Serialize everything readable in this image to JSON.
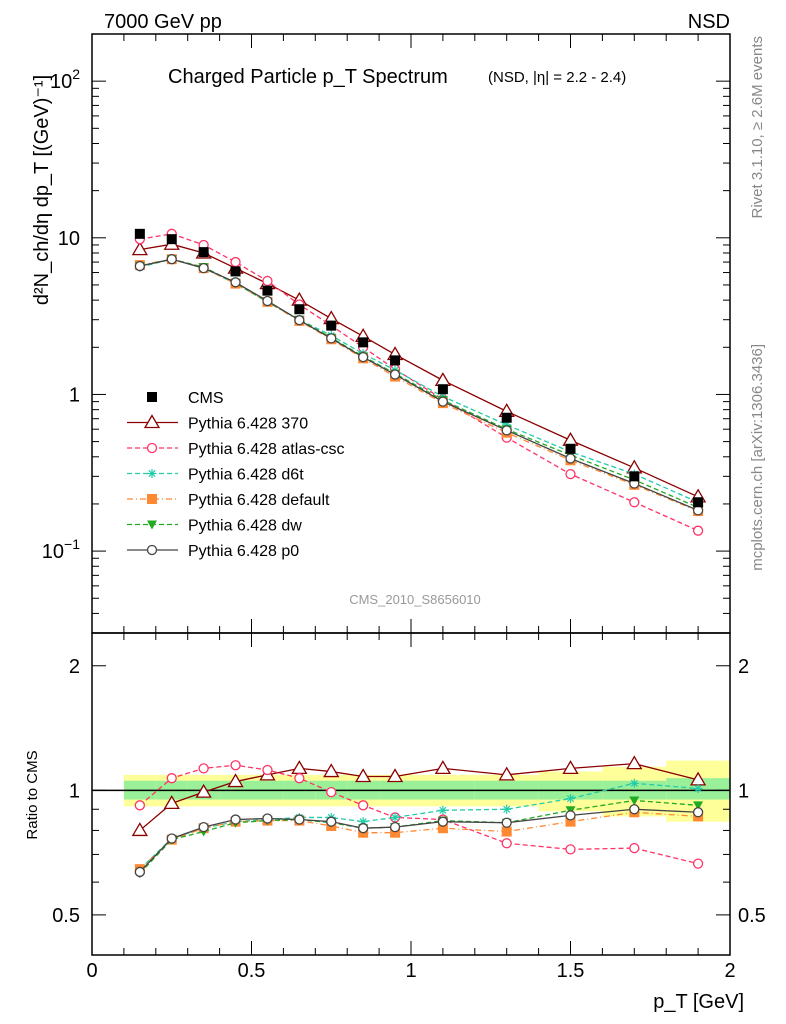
{
  "header": {
    "left": "7000 GeV pp",
    "right": "NSD"
  },
  "side_text": {
    "rivet": "Rivet 3.1.10, ≥ 2.6M events",
    "mcplots": "mcplots.cern.ch [arXiv:1306.3436]"
  },
  "chart_data": [
    {
      "type": "line",
      "panel": "main",
      "title": "Charged Particle p_T Spectrum",
      "subtitle": "(NSD, |η| = 2.2 - 2.4)",
      "analysis_label": "CMS_2010_S8656010",
      "xlabel": "p_T [GeV]",
      "ylabel": "d²N_ch/dη dp_T [(GeV)⁻¹]",
      "yscale": "log",
      "xlim": [
        0,
        2
      ],
      "ylim": [
        0.03,
        200
      ],
      "legend_position": "lower-left",
      "x": [
        0.15,
        0.25,
        0.35,
        0.45,
        0.55,
        0.65,
        0.75,
        0.85,
        0.95,
        1.1,
        1.3,
        1.5,
        1.7,
        1.9
      ],
      "series": [
        {
          "name": "CMS",
          "color": "#000000",
          "marker": "filled-square",
          "line": "none",
          "values": [
            10.6,
            9.8,
            8.1,
            6.1,
            4.6,
            3.5,
            2.75,
            2.15,
            1.65,
            1.08,
            0.71,
            0.45,
            0.3,
            0.205
          ]
        },
        {
          "name": "Pythia 6.428 370",
          "color": "#8b0000",
          "marker": "open-triangle",
          "line": "solid",
          "values": [
            8.4,
            9.1,
            8.0,
            6.4,
            5.1,
            4.0,
            3.05,
            2.35,
            1.8,
            1.23,
            0.78,
            0.51,
            0.34,
            0.222
          ]
        },
        {
          "name": "Pythia 6.428 atlas-csc",
          "color": "#ff3366",
          "marker": "open-circle",
          "line": "dashed",
          "values": [
            9.8,
            10.6,
            9.0,
            7.0,
            5.3,
            3.75,
            2.75,
            2.0,
            1.45,
            0.93,
            0.53,
            0.31,
            0.205,
            0.135
          ]
        },
        {
          "name": "Pythia 6.428 d6t",
          "color": "#22ccaa",
          "marker": "star",
          "line": "dashed",
          "values": [
            6.5,
            7.3,
            6.4,
            5.1,
            3.9,
            3.0,
            2.38,
            1.82,
            1.43,
            0.97,
            0.64,
            0.43,
            0.31,
            0.205
          ]
        },
        {
          "name": "Pythia 6.428 default",
          "color": "#ff8833",
          "marker": "filled-square",
          "line": "dashdot",
          "values": [
            6.7,
            7.3,
            6.4,
            5.1,
            3.9,
            2.95,
            2.25,
            1.7,
            1.3,
            0.88,
            0.57,
            0.38,
            0.265,
            0.18
          ]
        },
        {
          "name": "Pythia 6.428 dw",
          "color": "#22aa22",
          "marker": "filled-triangle-down",
          "line": "dashed",
          "values": [
            6.6,
            7.3,
            6.5,
            5.15,
            3.9,
            3.0,
            2.3,
            1.75,
            1.36,
            0.92,
            0.6,
            0.41,
            0.285,
            0.19
          ]
        },
        {
          "name": "Pythia 6.428 p0",
          "color": "#444444",
          "marker": "open-circle",
          "line": "solid",
          "values": [
            6.6,
            7.3,
            6.4,
            5.2,
            3.95,
            2.98,
            2.28,
            1.73,
            1.34,
            0.9,
            0.59,
            0.39,
            0.27,
            0.182
          ]
        }
      ]
    },
    {
      "type": "line",
      "panel": "ratio",
      "xlabel": "p_T [GeV]",
      "ylabel": "Ratio to CMS",
      "yscale": "log",
      "xlim": [
        0,
        2
      ],
      "ylim": [
        0.4,
        2.4
      ],
      "x": [
        0.15,
        0.25,
        0.35,
        0.45,
        0.55,
        0.65,
        0.75,
        0.85,
        0.95,
        1.1,
        1.3,
        1.5,
        1.7,
        1.9
      ],
      "reference_line": 1,
      "uncertainty_bands": {
        "bin_edges": [
          0.1,
          0.2,
          0.3,
          0.4,
          0.5,
          0.6,
          0.7,
          0.8,
          0.9,
          1.0,
          1.2,
          1.4,
          1.6,
          1.8,
          2.0
        ],
        "inner_lo": [
          0.95,
          0.95,
          0.95,
          0.95,
          0.95,
          0.95,
          0.95,
          0.95,
          0.95,
          0.95,
          0.95,
          0.95,
          0.95,
          0.95
        ],
        "inner_hi": [
          1.055,
          1.055,
          1.055,
          1.055,
          1.055,
          1.055,
          1.055,
          1.055,
          1.055,
          1.055,
          1.055,
          1.055,
          1.055,
          1.07
        ],
        "outer_lo": [
          0.915,
          0.915,
          0.915,
          0.915,
          0.915,
          0.915,
          0.915,
          0.915,
          0.915,
          0.915,
          0.915,
          0.89,
          0.865,
          0.84
        ],
        "outer_hi": [
          1.09,
          1.09,
          1.09,
          1.09,
          1.09,
          1.09,
          1.09,
          1.09,
          1.09,
          1.09,
          1.09,
          1.11,
          1.14,
          1.18
        ],
        "inner_color": "#99f099",
        "outer_color": "#ffff99"
      },
      "series": [
        {
          "name": "Pythia 6.428 370",
          "color": "#8b0000",
          "marker": "open-triangle",
          "line": "solid",
          "values": [
            0.8,
            0.93,
            0.99,
            1.05,
            1.09,
            1.13,
            1.11,
            1.08,
            1.08,
            1.13,
            1.09,
            1.13,
            1.16,
            1.06
          ]
        },
        {
          "name": "Pythia 6.428 atlas-csc",
          "color": "#ff3366",
          "marker": "open-circle",
          "line": "dashed",
          "values": [
            0.92,
            1.07,
            1.13,
            1.15,
            1.12,
            1.07,
            0.99,
            0.92,
            0.86,
            0.85,
            0.745,
            0.72,
            0.725,
            0.665
          ]
        },
        {
          "name": "Pythia 6.428 d6t",
          "color": "#22ccaa",
          "marker": "star",
          "line": "dashed",
          "values": [
            0.645,
            0.765,
            0.81,
            0.84,
            0.85,
            0.86,
            0.86,
            0.84,
            0.86,
            0.895,
            0.9,
            0.955,
            1.04,
            1.01
          ]
        },
        {
          "name": "Pythia 6.428 default",
          "color": "#ff8833",
          "marker": "filled-square",
          "line": "dashdot",
          "values": [
            0.645,
            0.76,
            0.81,
            0.84,
            0.845,
            0.845,
            0.82,
            0.79,
            0.79,
            0.81,
            0.795,
            0.84,
            0.885,
            0.865
          ]
        },
        {
          "name": "Pythia 6.428 dw",
          "color": "#22aa22",
          "marker": "filled-triangle-down",
          "line": "dashed",
          "values": [
            0.63,
            0.76,
            0.795,
            0.835,
            0.845,
            0.85,
            0.835,
            0.81,
            0.815,
            0.845,
            0.835,
            0.895,
            0.945,
            0.92
          ]
        },
        {
          "name": "Pythia 6.428 p0",
          "color": "#444444",
          "marker": "open-circle",
          "line": "solid",
          "values": [
            0.635,
            0.765,
            0.815,
            0.85,
            0.855,
            0.85,
            0.84,
            0.81,
            0.815,
            0.84,
            0.835,
            0.87,
            0.9,
            0.885
          ]
        }
      ]
    }
  ]
}
